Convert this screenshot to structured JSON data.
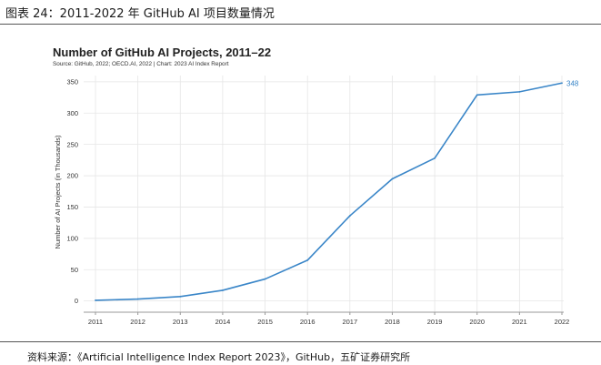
{
  "caption": "图表 24：2011-2022 年 GitHub AI 项目数量情况",
  "footer": "资料来源：《Artificial Intelligence Index Report 2023》，GitHub，五矿证券研究所",
  "colors": {
    "line": "#3a86c8",
    "grid": "#e6e6e6",
    "axis": "#999999"
  },
  "chart_data": {
    "type": "line",
    "title": "Number of GitHub AI Projects, 2011–22",
    "subtitle": "Source: GitHub, 2022; OECD.AI, 2022 | Chart: 2023 AI Index Report",
    "xlabel": "",
    "ylabel": "Number of AI Projects (in Thousands)",
    "x": [
      "2011",
      "2012",
      "2013",
      "2014",
      "2015",
      "2016",
      "2017",
      "2018",
      "2019",
      "2020",
      "2021",
      "2022"
    ],
    "series": [
      {
        "name": "GitHub AI Projects",
        "values": [
          1,
          3,
          7,
          17,
          35,
          65,
          136,
          195,
          228,
          329,
          334,
          348
        ]
      }
    ],
    "yticks": [
      0,
      50,
      100,
      150,
      200,
      250,
      300,
      350
    ],
    "ylim": [
      -18,
      360
    ],
    "end_label": "348",
    "grid": true
  }
}
